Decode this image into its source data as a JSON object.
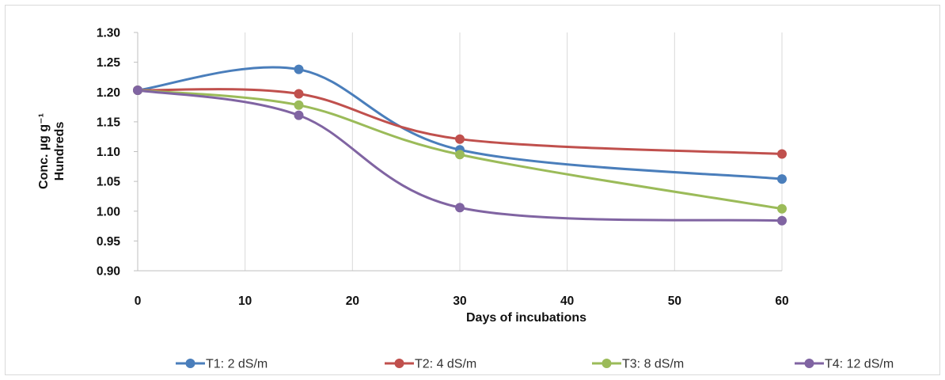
{
  "chart_data": {
    "type": "line",
    "title": "",
    "xlabel": "Days of incubations",
    "ylabel": "Conc.  µg g⁻¹",
    "ylabel_units_line": "Hundreds",
    "xlim": [
      0,
      60
    ],
    "ylim": [
      0.9,
      1.3
    ],
    "x_ticks": [
      0,
      10,
      20,
      30,
      40,
      50,
      60
    ],
    "y_ticks": [
      "0.90",
      "0.95",
      "1.00",
      "1.05",
      "1.10",
      "1.15",
      "1.20",
      "1.25",
      "1.30"
    ],
    "grid": "vertical",
    "smooth": true,
    "legend_position": "bottom",
    "x": [
      0,
      15,
      30,
      60
    ],
    "series": [
      {
        "name": "T1: 2 dS/m",
        "color": "#4a7ebb",
        "values": [
          1.203,
          1.238,
          1.103,
          1.054
        ]
      },
      {
        "name": "T2: 4 dS/m",
        "color": "#c0504d",
        "values": [
          1.203,
          1.197,
          1.121,
          1.096
        ]
      },
      {
        "name": "T3: 8 dS/m",
        "color": "#9bbb59",
        "values": [
          1.203,
          1.178,
          1.095,
          1.004
        ]
      },
      {
        "name": "T4: 12 dS/m",
        "color": "#8064a2",
        "values": [
          1.203,
          1.161,
          1.006,
          0.984
        ]
      }
    ]
  }
}
